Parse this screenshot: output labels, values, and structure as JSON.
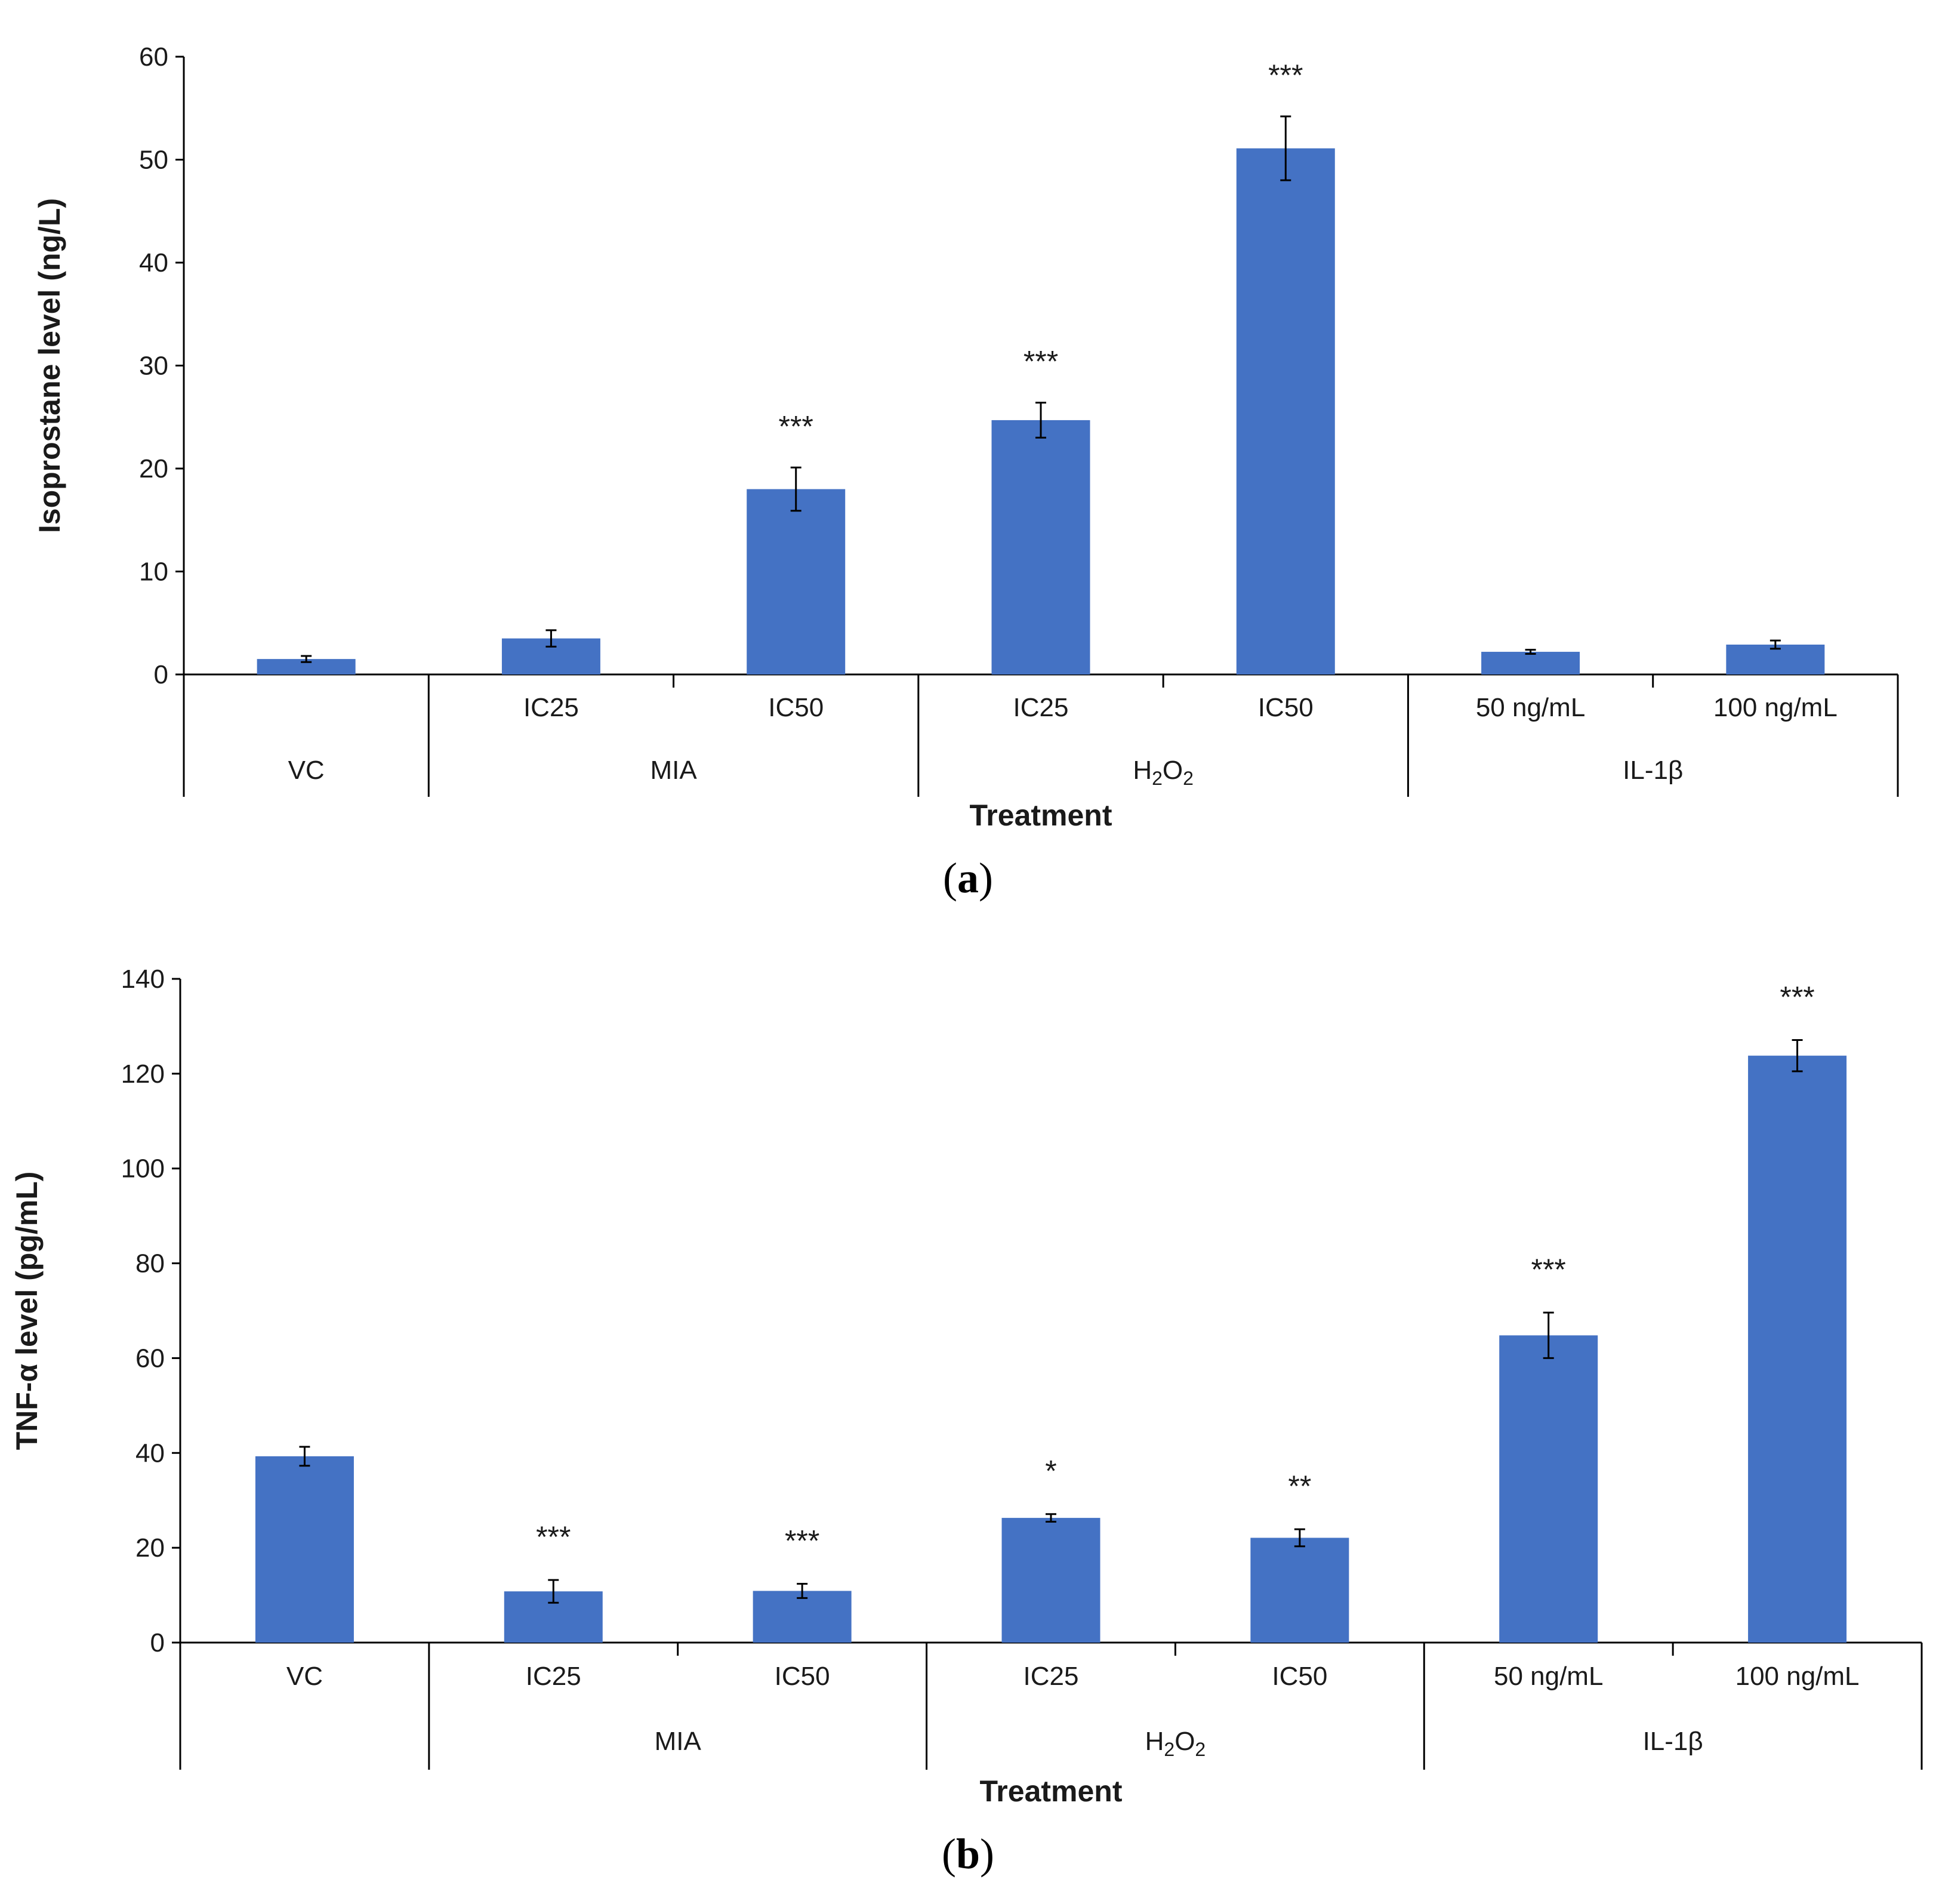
{
  "colors": {
    "bar": "#4472c4",
    "axis": "#000000",
    "text": "#1a1a1a"
  },
  "chart_data": [
    {
      "type": "bar",
      "panel_label": "a",
      "ylabel": "Isoprostane level (ng/L)",
      "xlabel": "Treatment",
      "ylim": [
        0,
        60
      ],
      "yticks": [
        0,
        10,
        20,
        30,
        40,
        50,
        60
      ],
      "categories": [
        {
          "tick": "",
          "group": "VC",
          "value": 1.5,
          "error": 0.3,
          "significance": ""
        },
        {
          "tick": "IC25",
          "group": "MIA",
          "value": 3.5,
          "error": 0.8,
          "significance": ""
        },
        {
          "tick": "IC50",
          "group": "MIA",
          "value": 18.0,
          "error": 2.1,
          "significance": "***"
        },
        {
          "tick": "IC25",
          "group": "H2O2",
          "value": 24.7,
          "error": 1.7,
          "significance": "***"
        },
        {
          "tick": "IC50",
          "group": "H2O2",
          "value": 51.1,
          "error": 3.1,
          "significance": "***"
        },
        {
          "tick": "50 ng/mL",
          "group": "IL-1β",
          "value": 2.2,
          "error": 0.2,
          "significance": ""
        },
        {
          "tick": "100 ng/mL",
          "group": "IL-1β",
          "value": 2.9,
          "error": 0.4,
          "significance": ""
        }
      ],
      "groups": [
        {
          "key": "VC",
          "label": "VC",
          "subscript": false
        },
        {
          "key": "MIA",
          "label": "MIA",
          "subscript": false
        },
        {
          "key": "H2O2",
          "label": "H2O2",
          "subscript": true
        },
        {
          "key": "IL-1β",
          "label": "IL-1β",
          "subscript": false
        }
      ]
    },
    {
      "type": "bar",
      "panel_label": "b",
      "ylabel": "TNF-α level (pg/mL)",
      "xlabel": "Treatment",
      "ylim": [
        0,
        140
      ],
      "yticks": [
        0,
        20,
        40,
        60,
        80,
        100,
        120,
        140
      ],
      "categories": [
        {
          "tick": "VC",
          "group": "VC",
          "value": 39.3,
          "error": 2.0,
          "significance": ""
        },
        {
          "tick": "IC25",
          "group": "MIA",
          "value": 10.8,
          "error": 2.4,
          "significance": "***"
        },
        {
          "tick": "IC50",
          "group": "MIA",
          "value": 10.9,
          "error": 1.5,
          "significance": "***"
        },
        {
          "tick": "IC25",
          "group": "H2O2",
          "value": 26.3,
          "error": 0.8,
          "significance": "*"
        },
        {
          "tick": "IC50",
          "group": "H2O2",
          "value": 22.1,
          "error": 1.8,
          "significance": "**"
        },
        {
          "tick": "50 ng/mL",
          "group": "IL-1β",
          "value": 64.8,
          "error": 4.8,
          "significance": "***"
        },
        {
          "tick": "100 ng/mL",
          "group": "IL-1β",
          "value": 123.8,
          "error": 3.3,
          "significance": "***"
        }
      ],
      "groups": [
        {
          "key": "VC",
          "label": "",
          "subscript": false
        },
        {
          "key": "MIA",
          "label": "MIA",
          "subscript": false
        },
        {
          "key": "H2O2",
          "label": "H2O2",
          "subscript": true
        },
        {
          "key": "IL-1β",
          "label": "IL-1β",
          "subscript": false
        }
      ]
    }
  ]
}
